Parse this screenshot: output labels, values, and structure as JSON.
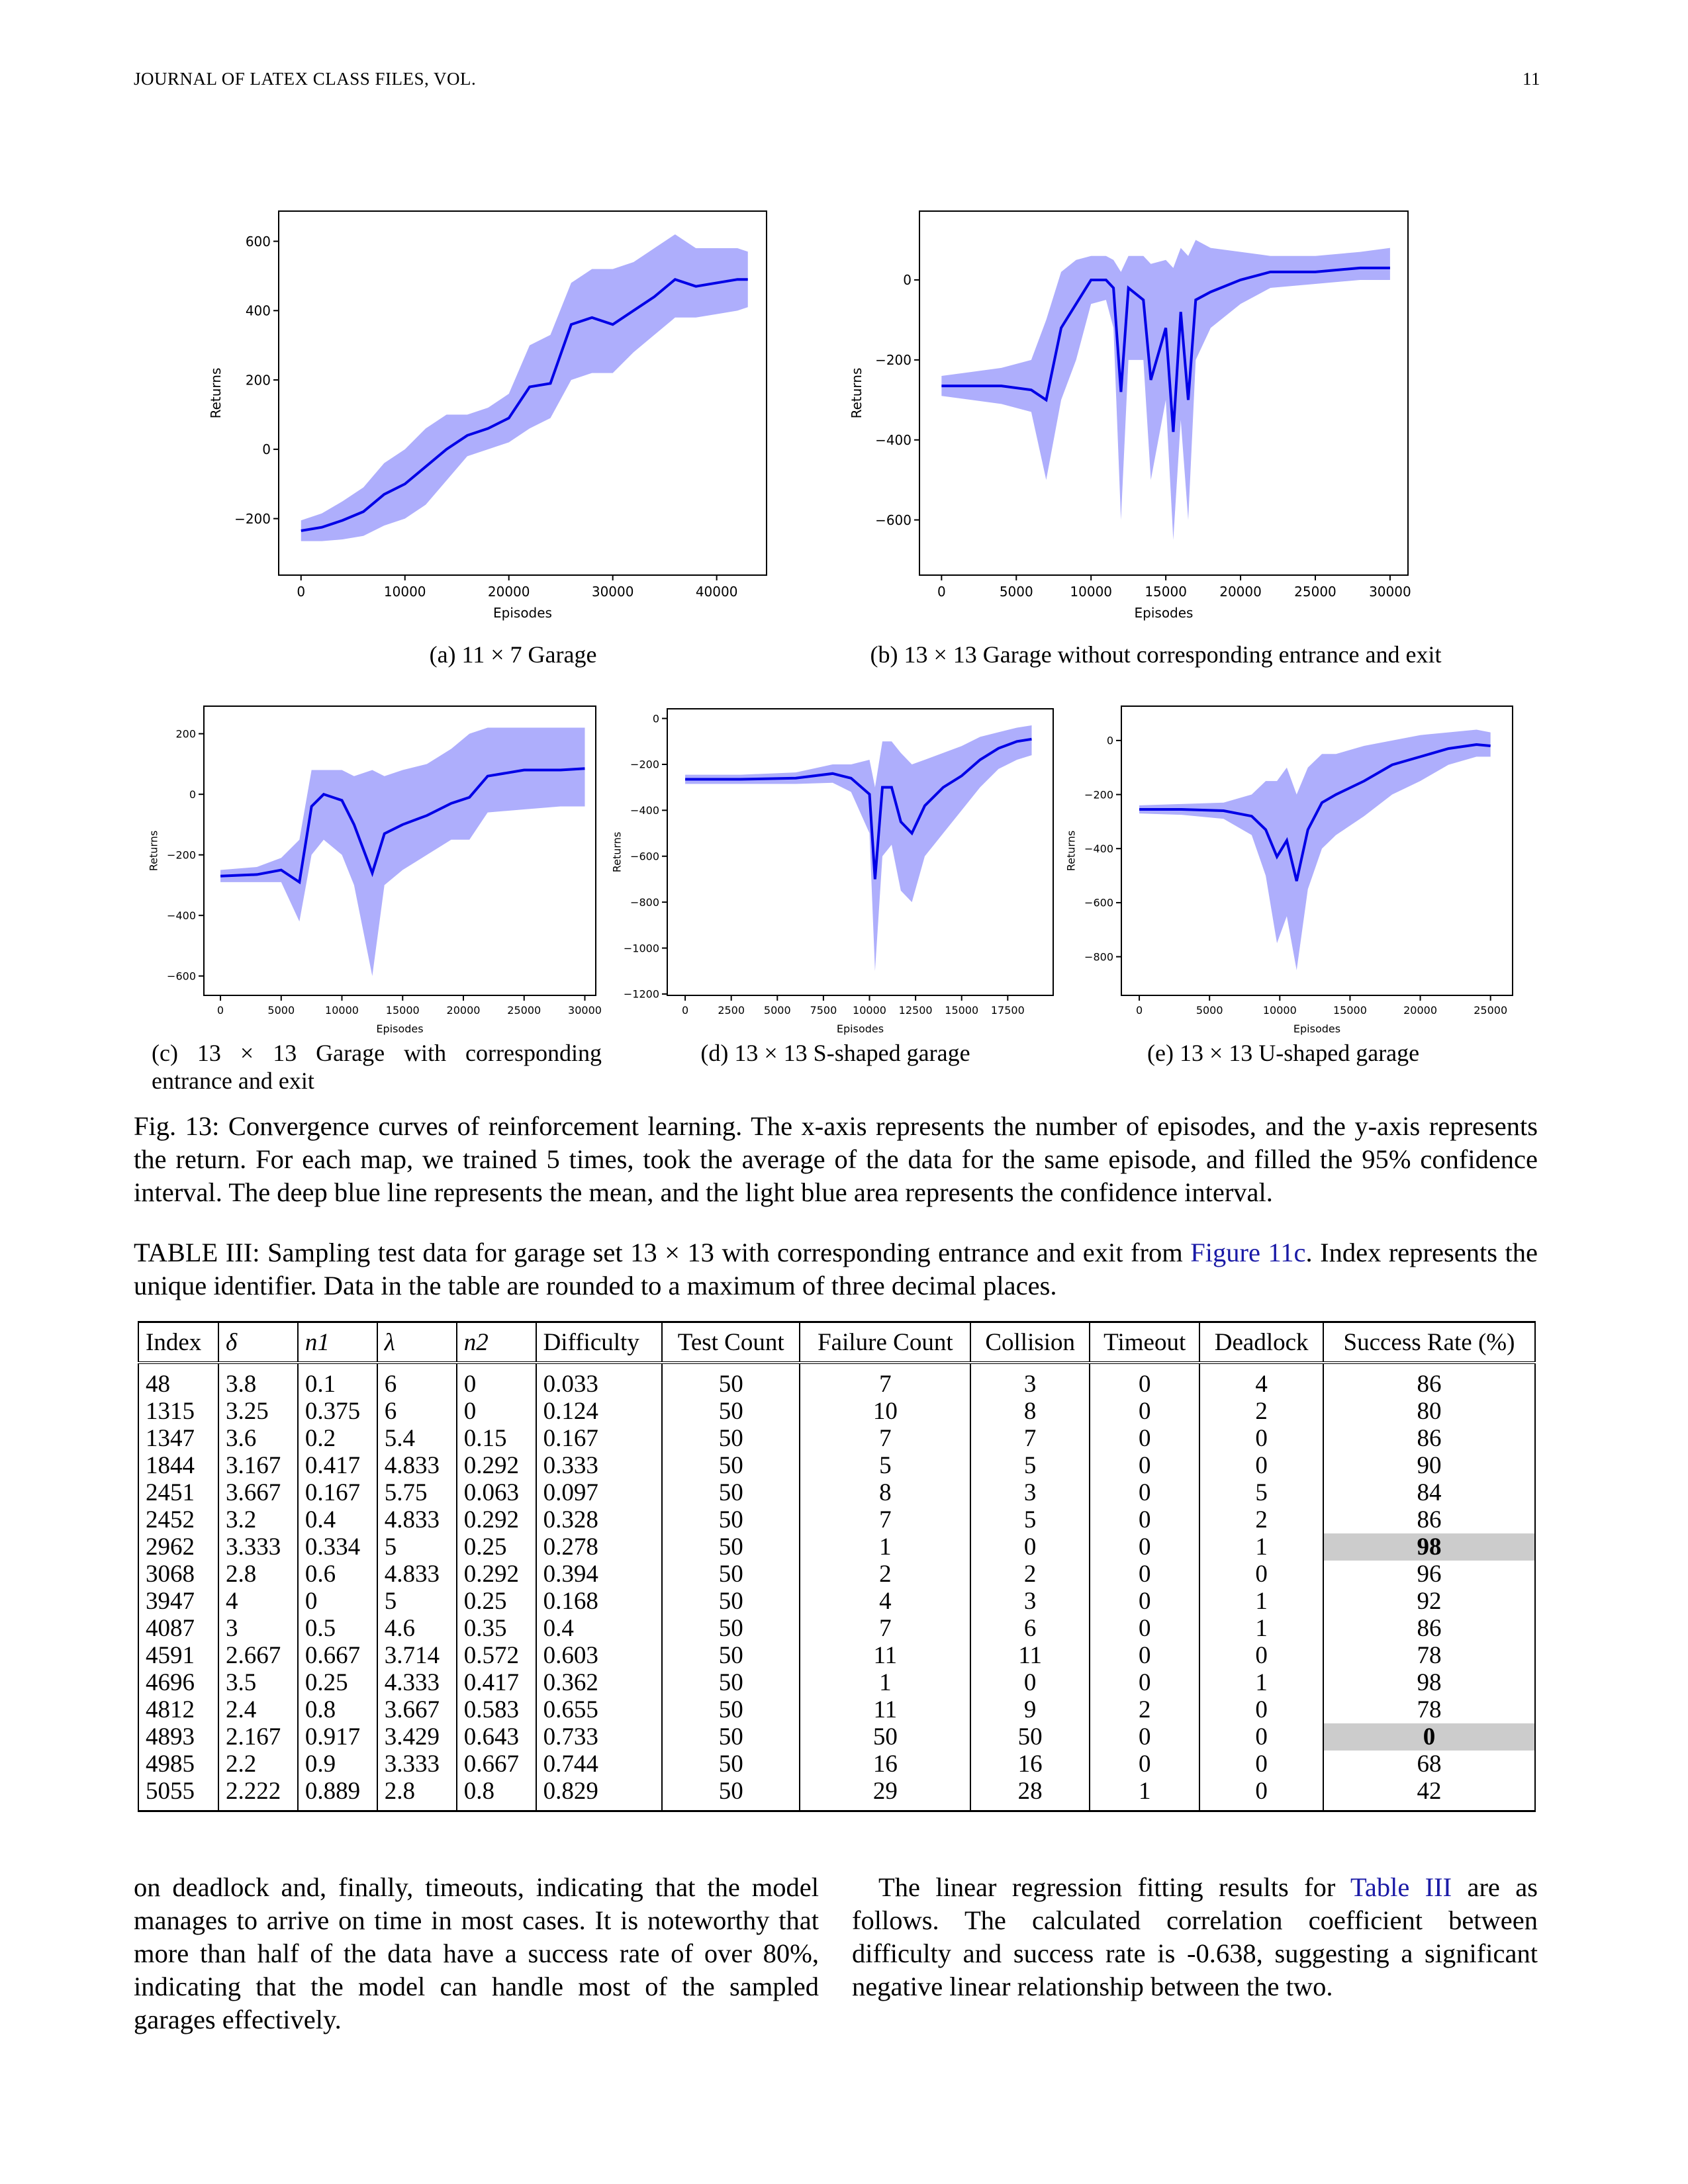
{
  "header": {
    "left": "JOURNAL OF LATEX CLASS FILES, VOL.",
    "page": "11"
  },
  "chart_data": [
    {
      "type": "line",
      "caption": "(a) 11 × 7 Garage",
      "xlabel": "Episodes",
      "ylabel": "Returns",
      "color": "#0000e6",
      "band_color": "#aeaefc",
      "xlim": [
        -2150,
        44800
      ],
      "ylim": [
        -363,
        687
      ],
      "xticks": [
        0,
        10000,
        20000,
        30000,
        40000
      ],
      "yticks": [
        {
          "value": -200,
          "label": "−200"
        },
        0,
        200,
        400,
        600
      ],
      "x": [
        0,
        2000,
        4000,
        6000,
        8000,
        10000,
        12000,
        14000,
        16000,
        18000,
        20000,
        22000,
        24000,
        26000,
        28000,
        30000,
        32000,
        34000,
        36000,
        38000,
        40000,
        42000,
        43000
      ],
      "values": [
        -235,
        -225,
        -205,
        -180,
        -130,
        -100,
        -50,
        0,
        40,
        60,
        90,
        180,
        190,
        360,
        380,
        360,
        400,
        440,
        490,
        470,
        480,
        490,
        490
      ],
      "lower": [
        -265,
        -265,
        -260,
        -250,
        -220,
        -200,
        -160,
        -90,
        -20,
        0,
        20,
        60,
        90,
        200,
        220,
        220,
        280,
        330,
        380,
        380,
        390,
        400,
        410
      ],
      "upper": [
        -205,
        -185,
        -150,
        -110,
        -40,
        0,
        60,
        100,
        100,
        120,
        160,
        300,
        330,
        480,
        520,
        520,
        540,
        580,
        620,
        580,
        580,
        580,
        570
      ]
    },
    {
      "type": "line",
      "caption": "(b) 13 × 13 Garage without corresponding entrance and exit",
      "xlabel": "Episodes",
      "ylabel": "Returns",
      "color": "#0000e6",
      "band_color": "#aeaefc",
      "xlim": [
        -1477,
        31200
      ],
      "ylim": [
        -738,
        172
      ],
      "xticks": [
        0,
        5000,
        10000,
        15000,
        20000,
        25000,
        30000
      ],
      "yticks": [
        {
          "value": -600,
          "label": "−600"
        },
        {
          "value": -400,
          "label": "−400"
        },
        {
          "value": -200,
          "label": "−200"
        },
        0
      ],
      "x": [
        0,
        2000,
        4000,
        6000,
        7000,
        8000,
        9000,
        10000,
        11000,
        11500,
        12000,
        12500,
        13500,
        14000,
        15000,
        15500,
        16000,
        16500,
        17000,
        18000,
        20000,
        22000,
        25000,
        28000,
        30000
      ],
      "values": [
        -265,
        -265,
        -265,
        -275,
        -300,
        -120,
        -60,
        0,
        0,
        -20,
        -280,
        -20,
        -50,
        -250,
        -120,
        -380,
        -80,
        -300,
        -50,
        -30,
        0,
        20,
        20,
        30,
        30
      ],
      "lower": [
        -290,
        -300,
        -310,
        -330,
        -500,
        -300,
        -200,
        -60,
        -50,
        -120,
        -600,
        -200,
        -200,
        -500,
        -300,
        -650,
        -350,
        -600,
        -200,
        -120,
        -60,
        -20,
        -10,
        0,
        0
      ],
      "upper": [
        -240,
        -230,
        -220,
        -200,
        -100,
        20,
        50,
        60,
        60,
        50,
        20,
        60,
        60,
        40,
        50,
        30,
        80,
        60,
        100,
        80,
        70,
        60,
        60,
        70,
        80
      ]
    },
    {
      "type": "line",
      "caption": "(c) 13 × 13 Garage with corresponding entrance and exit",
      "xlabel": "Episodes",
      "ylabel": "Returns",
      "color": "#0000e6",
      "band_color": "#aeaefc",
      "xlim": [
        -1364,
        30900
      ],
      "ylim": [
        -664,
        291
      ],
      "xticks": [
        0,
        5000,
        10000,
        15000,
        20000,
        25000,
        30000
      ],
      "yticks": [
        {
          "value": -600,
          "label": "−600"
        },
        {
          "value": -400,
          "label": "−400"
        },
        {
          "value": -200,
          "label": "−200"
        },
        0,
        200
      ],
      "x": [
        0,
        3000,
        5000,
        6500,
        7500,
        8500,
        10000,
        11000,
        12500,
        13500,
        15000,
        17000,
        19000,
        20500,
        22000,
        25000,
        28000,
        30000
      ],
      "values": [
        -270,
        -265,
        -250,
        -290,
        -40,
        0,
        -20,
        -100,
        -260,
        -130,
        -100,
        -70,
        -30,
        -10,
        60,
        80,
        80,
        85
      ],
      "lower": [
        -290,
        -290,
        -290,
        -420,
        -200,
        -150,
        -200,
        -300,
        -600,
        -300,
        -250,
        -200,
        -150,
        -150,
        -60,
        -50,
        -40,
        -40
      ],
      "upper": [
        -250,
        -240,
        -210,
        -150,
        80,
        80,
        80,
        60,
        80,
        60,
        80,
        100,
        150,
        200,
        220,
        220,
        220,
        220
      ]
    },
    {
      "type": "line",
      "caption": "(d) 13 × 13 S-shaped garage",
      "xlabel": "Episodes",
      "ylabel": "Returns",
      "color": "#0000e6",
      "band_color": "#aeaefc",
      "xlim": [
        -972,
        19966
      ],
      "ylim": [
        -1206,
        42
      ],
      "xticks": [
        0,
        2500,
        5000,
        7500,
        10000,
        12500,
        15000,
        17500
      ],
      "yticks": [
        {
          "value": -1200,
          "label": "−1200"
        },
        {
          "value": -1000,
          "label": "−1000"
        },
        {
          "value": -800,
          "label": "−800"
        },
        {
          "value": -600,
          "label": "−600"
        },
        {
          "value": -400,
          "label": "−400"
        },
        {
          "value": -200,
          "label": "−200"
        },
        0
      ],
      "x": [
        0,
        3000,
        6000,
        8000,
        9000,
        10000,
        10300,
        10700,
        11200,
        11700,
        12300,
        13000,
        14000,
        15000,
        16000,
        17000,
        18000,
        18800
      ],
      "values": [
        -265,
        -265,
        -260,
        -240,
        -260,
        -330,
        -700,
        -300,
        -300,
        -450,
        -500,
        -380,
        -300,
        -250,
        -180,
        -130,
        -100,
        -90
      ],
      "lower": [
        -285,
        -285,
        -285,
        -280,
        -320,
        -500,
        -1100,
        -600,
        -550,
        -750,
        -800,
        -600,
        -500,
        -400,
        -300,
        -220,
        -180,
        -160
      ],
      "upper": [
        -245,
        -245,
        -235,
        -200,
        -200,
        -180,
        -300,
        -100,
        -100,
        -150,
        -200,
        -180,
        -150,
        -120,
        -80,
        -60,
        -40,
        -30
      ]
    },
    {
      "type": "line",
      "caption": "(e) 13 × 13 U-shaped garage",
      "xlabel": "Episodes",
      "ylabel": "Returns",
      "color": "#0000e6",
      "band_color": "#aeaefc",
      "xlim": [
        -1275,
        26570
      ],
      "ylim": [
        -943,
        127
      ],
      "xticks": [
        0,
        5000,
        10000,
        15000,
        20000,
        25000
      ],
      "yticks": [
        {
          "value": -800,
          "label": "−800"
        },
        {
          "value": -600,
          "label": "−600"
        },
        {
          "value": -400,
          "label": "−400"
        },
        {
          "value": -200,
          "label": "−200"
        },
        0
      ],
      "x": [
        0,
        3000,
        6000,
        8000,
        9000,
        9800,
        10500,
        11200,
        12000,
        13000,
        14000,
        16000,
        18000,
        20000,
        22000,
        24000,
        25000
      ],
      "values": [
        -255,
        -255,
        -260,
        -280,
        -330,
        -430,
        -370,
        -520,
        -330,
        -230,
        -200,
        -150,
        -90,
        -60,
        -30,
        -15,
        -20
      ],
      "lower": [
        -270,
        -275,
        -290,
        -350,
        -500,
        -750,
        -650,
        -850,
        -550,
        -400,
        -350,
        -280,
        -200,
        -150,
        -90,
        -60,
        -60
      ],
      "upper": [
        -240,
        -235,
        -230,
        -200,
        -150,
        -150,
        -100,
        -200,
        -100,
        -50,
        -50,
        -20,
        0,
        20,
        30,
        40,
        30
      ]
    }
  ],
  "figure_caption": "Fig. 13: Convergence curves of reinforcement learning. The x-axis represents the number of episodes, and the y-axis represents the return. For each map, we trained 5 times, took the average of the data for the same episode, and filled the 95% confidence interval. The deep blue line represents the mean, and the light blue area represents the confidence interval.",
  "table": {
    "caption": [
      "TABLE III: Sampling test data for garage set 13 × 13 with corresponding entrance and exit from ",
      "Figure 11c",
      ". Index represents the unique identifier. Data in the table are rounded to a maximum of three decimal places."
    ],
    "columns": [
      "Index",
      "δ",
      "n1",
      "λ",
      "n2",
      "Difficulty",
      "Test Count",
      "Failure Count",
      "Collision",
      "Timeout",
      "Deadlock",
      "Success Rate (%)"
    ],
    "rows": [
      [
        48,
        3.8,
        0.1,
        6,
        0,
        0.033,
        50,
        7,
        3,
        0,
        4,
        86
      ],
      [
        1315,
        3.25,
        0.375,
        6,
        0,
        0.124,
        50,
        10,
        8,
        0,
        2,
        80
      ],
      [
        1347,
        3.6,
        0.2,
        5.4,
        0.15,
        0.167,
        50,
        7,
        7,
        0,
        0,
        86
      ],
      [
        1844,
        3.167,
        0.417,
        4.833,
        0.292,
        0.333,
        50,
        5,
        5,
        0,
        0,
        90
      ],
      [
        2451,
        3.667,
        0.167,
        5.75,
        0.063,
        0.097,
        50,
        8,
        3,
        0,
        5,
        84
      ],
      [
        2452,
        3.2,
        0.4,
        4.833,
        0.292,
        0.328,
        50,
        7,
        5,
        0,
        2,
        86
      ],
      [
        2962,
        3.333,
        0.334,
        5,
        0.25,
        0.278,
        50,
        1,
        0,
        0,
        1,
        98
      ],
      [
        3068,
        2.8,
        0.6,
        4.833,
        0.292,
        0.394,
        50,
        2,
        2,
        0,
        0,
        96
      ],
      [
        3947,
        4,
        0,
        5,
        0.25,
        0.168,
        50,
        4,
        3,
        0,
        1,
        92
      ],
      [
        4087,
        3,
        0.5,
        4.6,
        0.35,
        0.4,
        50,
        7,
        6,
        0,
        1,
        86
      ],
      [
        4591,
        2.667,
        0.667,
        3.714,
        0.572,
        0.603,
        50,
        11,
        11,
        0,
        0,
        78
      ],
      [
        4696,
        3.5,
        0.25,
        4.333,
        0.417,
        0.362,
        50,
        1,
        0,
        0,
        1,
        98
      ],
      [
        4812,
        2.4,
        0.8,
        3.667,
        0.583,
        0.655,
        50,
        11,
        9,
        2,
        0,
        78
      ],
      [
        4893,
        2.167,
        0.917,
        3.429,
        0.643,
        0.733,
        50,
        50,
        50,
        0,
        0,
        0
      ],
      [
        4985,
        2.2,
        0.9,
        3.333,
        0.667,
        0.744,
        50,
        16,
        16,
        0,
        0,
        68
      ],
      [
        5055,
        2.222,
        0.889,
        2.8,
        0.8,
        0.829,
        50,
        29,
        28,
        1,
        0,
        42
      ]
    ],
    "highlight": [
      [
        6,
        11
      ],
      [
        13,
        11
      ]
    ]
  },
  "body": {
    "left": "on deadlock and, finally, timeouts, indicating that the model manages to arrive on time in most cases. It is noteworthy that more than half of the data have a success rate of over 80%, indicating that the model can handle most of the sampled garages effectively.",
    "right": [
      "The linear regression fitting results for ",
      "Table III",
      " are as follows. The calculated correlation coefficient between difficulty and success rate is -0.638, suggesting a significant negative linear relationship between the two."
    ]
  }
}
